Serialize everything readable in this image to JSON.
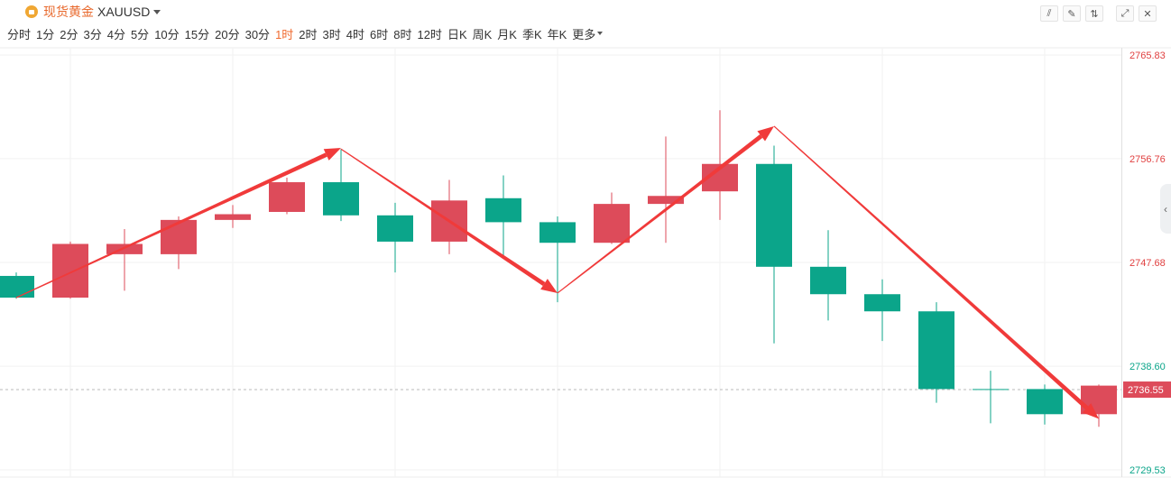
{
  "header": {
    "symbol_name": "现货黄金",
    "symbol_code": "XAUUSD"
  },
  "intervals": [
    "分时",
    "1分",
    "2分",
    "3分",
    "4分",
    "5分",
    "10分",
    "15分",
    "20分",
    "30分",
    "1时",
    "2时",
    "3时",
    "4时",
    "6时",
    "8时",
    "12时",
    "日K",
    "周K",
    "月K",
    "季K",
    "年K",
    "更多"
  ],
  "active_interval": "1时",
  "toolbar_icons": [
    "line-style-icon",
    "draw-icon",
    "indicator-icon",
    "expand-icon",
    "close-icon"
  ],
  "colors": {
    "up": "#dd4b5a",
    "down": "#0ba58a",
    "arrow": "#f03a3a",
    "axis_red": "#e04040",
    "axis_green": "#0ba58a"
  },
  "chart_data": {
    "type": "candlestick",
    "ylim": [
      2729.53,
      2765.83
    ],
    "ticks": [
      "2765.83",
      "2756.76",
      "2747.68",
      "2738.60",
      "2729.53"
    ],
    "current_price": "2736.55",
    "candles": [
      {
        "open": 2746.5,
        "close": 2744.6,
        "high": 2746.8,
        "low": 2744.5
      },
      {
        "open": 2744.6,
        "close": 2749.3,
        "high": 2749.5,
        "low": 2744.5
      },
      {
        "open": 2748.4,
        "close": 2749.3,
        "high": 2750.6,
        "low": 2745.2
      },
      {
        "open": 2748.4,
        "close": 2751.4,
        "high": 2751.7,
        "low": 2747.1
      },
      {
        "open": 2751.4,
        "close": 2751.9,
        "high": 2752.7,
        "low": 2750.7
      },
      {
        "open": 2752.1,
        "close": 2754.7,
        "high": 2755.1,
        "low": 2751.9
      },
      {
        "open": 2754.7,
        "close": 2751.8,
        "high": 2757.6,
        "low": 2751.3
      },
      {
        "open": 2751.8,
        "close": 2749.5,
        "high": 2752.9,
        "low": 2746.8
      },
      {
        "open": 2749.5,
        "close": 2753.1,
        "high": 2754.9,
        "low": 2748.4
      },
      {
        "open": 2753.3,
        "close": 2751.2,
        "high": 2755.3,
        "low": 2748.0
      },
      {
        "open": 2751.2,
        "close": 2749.4,
        "high": 2751.7,
        "low": 2744.2
      },
      {
        "open": 2749.4,
        "close": 2752.8,
        "high": 2753.8,
        "low": 2749.3
      },
      {
        "open": 2752.8,
        "close": 2753.5,
        "high": 2758.7,
        "low": 2749.4
      },
      {
        "open": 2753.9,
        "close": 2756.3,
        "high": 2761.0,
        "low": 2751.4
      },
      {
        "open": 2756.3,
        "close": 2747.3,
        "high": 2757.9,
        "low": 2740.6
      },
      {
        "open": 2747.3,
        "close": 2744.9,
        "high": 2750.5,
        "low": 2742.6
      },
      {
        "open": 2744.9,
        "close": 2743.4,
        "high": 2746.2,
        "low": 2740.8
      },
      {
        "open": 2743.4,
        "close": 2736.6,
        "high": 2744.2,
        "low": 2735.4
      },
      {
        "open": 2736.6,
        "close": 2736.6,
        "high": 2738.2,
        "low": 2733.6
      },
      {
        "open": 2736.6,
        "close": 2734.4,
        "high": 2737.0,
        "low": 2733.5
      },
      {
        "open": 2734.4,
        "close": 2736.9,
        "high": 2737.0,
        "low": 2733.3
      }
    ],
    "annotations": [
      {
        "type": "arrow",
        "from_index": 0,
        "from_price": 2744.6,
        "to_index": 6,
        "to_price": 2757.7
      },
      {
        "type": "arrow",
        "from_index": 6,
        "from_price": 2757.6,
        "to_index": 10,
        "to_price": 2745.0
      },
      {
        "type": "arrow",
        "from_index": 10,
        "from_price": 2745.0,
        "to_index": 14,
        "to_price": 2759.6
      },
      {
        "type": "arrow",
        "from_index": 14,
        "from_price": 2759.6,
        "to_index": 20,
        "to_price": 2734.0
      }
    ]
  }
}
